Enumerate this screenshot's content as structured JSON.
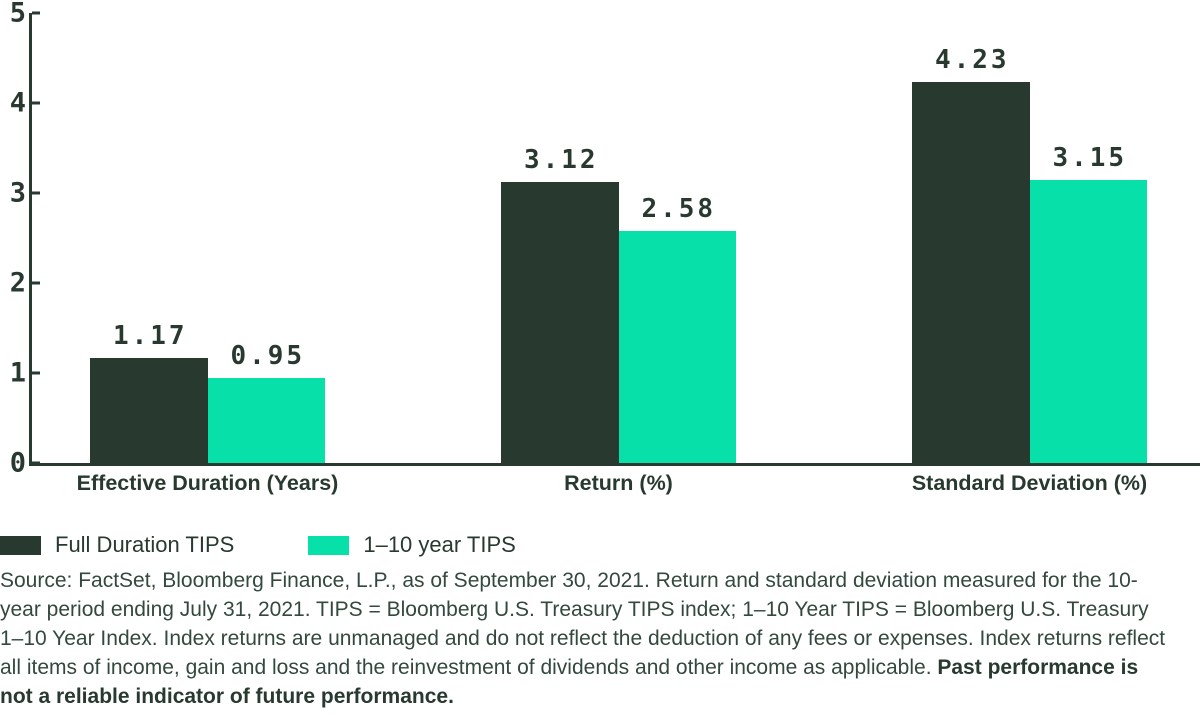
{
  "colors": {
    "dark_green": "#28392F",
    "teal": "#07E0A9",
    "text": "#33493D",
    "background": "#FFFFFF"
  },
  "chart_data": {
    "type": "bar",
    "categories": [
      "Effective Duration (Years)",
      "Return (%)",
      "Standard Deviation (%)"
    ],
    "series": [
      {
        "name": "Full Duration TIPS",
        "color": "#28392F",
        "values": [
          1.17,
          3.12,
          4.23
        ]
      },
      {
        "name": "1–10 year TIPS",
        "color": "#07E0A9",
        "values": [
          0.95,
          2.58,
          3.15
        ]
      }
    ],
    "data_labels": [
      "1.17",
      "0.95",
      "3.12",
      "2.58",
      "4.23",
      "3.15"
    ],
    "title": "",
    "xlabel": "",
    "ylabel": "",
    "ylim": [
      0,
      5
    ],
    "yticks": [
      0,
      1,
      2,
      3,
      4,
      5
    ],
    "grid": false,
    "legend_position": "bottom-left"
  },
  "legend": {
    "items": [
      {
        "label": "Full Duration TIPS",
        "color": "#28392F"
      },
      {
        "label": "1–10 year TIPS",
        "color": "#07E0A9"
      }
    ]
  },
  "footnote": {
    "regular": "Source: FactSet, Bloomberg Finance, L.P., as of September 30, 2021. Return and standard deviation measured for the 10-year period ending July 31, 2021. TIPS = Bloomberg U.S. Treasury TIPS index; 1–10 Year TIPS = Bloomberg U.S. Treasury 1–10 Year Index. Index returns are unmanaged and do not reflect the deduction of any fees or expenses. Index returns reflect all items of income, gain and loss and the reinvestment of dividends and other income as applicable. ",
    "bold": "Past performance is not a reliable indicator of future performance."
  }
}
